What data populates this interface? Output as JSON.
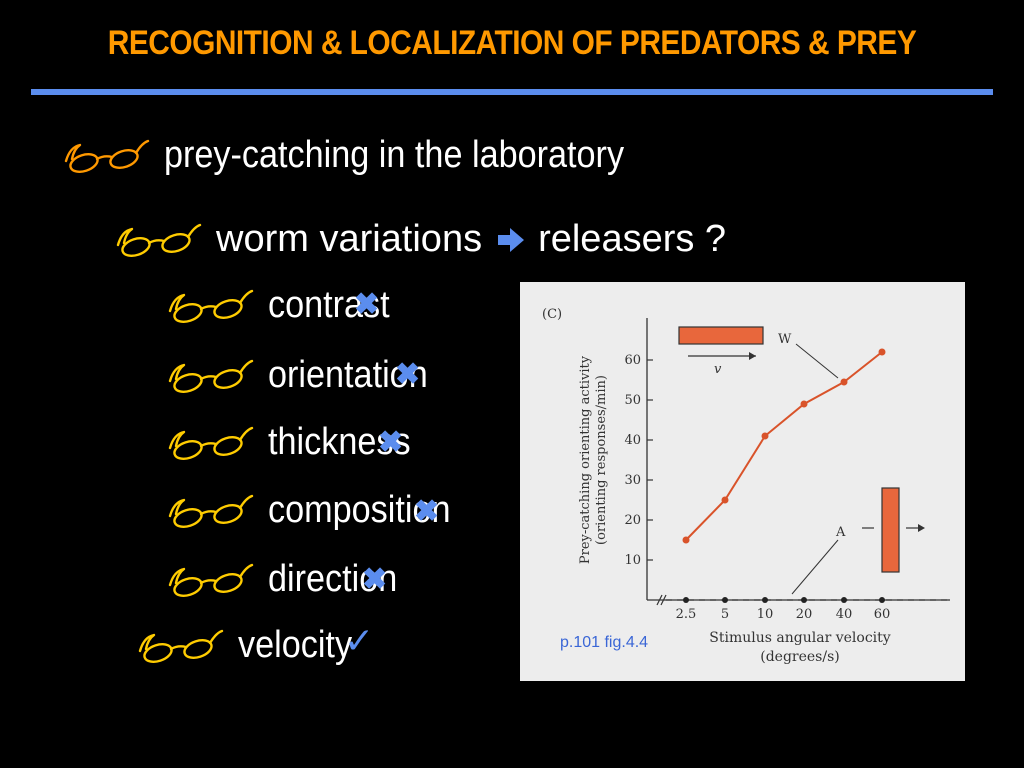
{
  "title": "RECOGNITION & LOCALIZATION OF PREDATORS & PREY",
  "colors": {
    "title": "#ff9900",
    "rule": "#5b8dee",
    "mark": "#5b8dee",
    "glasses_orange": "#ff9900",
    "glasses_yellow": "#ffcc00",
    "curve": "#d9532a"
  },
  "bullets": {
    "level1": "prey-catching in the laboratory",
    "level2_left": "worm variations",
    "level2_right": "releasers ?",
    "items": [
      "contrast",
      "orientation",
      "thickness",
      "composition",
      "direction"
    ],
    "velocity": "velocity"
  },
  "marks": {
    "cross": "✖",
    "check": "✓"
  },
  "icons": {
    "bullet": "glasses-icon",
    "arrow": "right-arrow-icon"
  },
  "figure_ref": "p.101 fig.4.4",
  "chart_data": {
    "type": "line",
    "panel_label": "(C)",
    "title": "",
    "xlabel": "Stimulus angular velocity",
    "xlabel2": "(degrees/s)",
    "ylabel": "Prey-catching orienting activity",
    "ylabel2": "(orienting responses/min)",
    "categories": [
      "2.5",
      "5",
      "10",
      "20",
      "40",
      "60"
    ],
    "yticks": [
      10,
      20,
      30,
      40,
      50,
      60
    ],
    "ylim": [
      0,
      65
    ],
    "series": [
      {
        "name": "W",
        "values": [
          15,
          25,
          41,
          49,
          54.5,
          62
        ]
      },
      {
        "name": "A",
        "values": [
          0,
          0,
          0,
          0,
          0,
          0
        ]
      }
    ],
    "inset_labels": {
      "w": "W",
      "v": "v",
      "a": "A"
    }
  }
}
